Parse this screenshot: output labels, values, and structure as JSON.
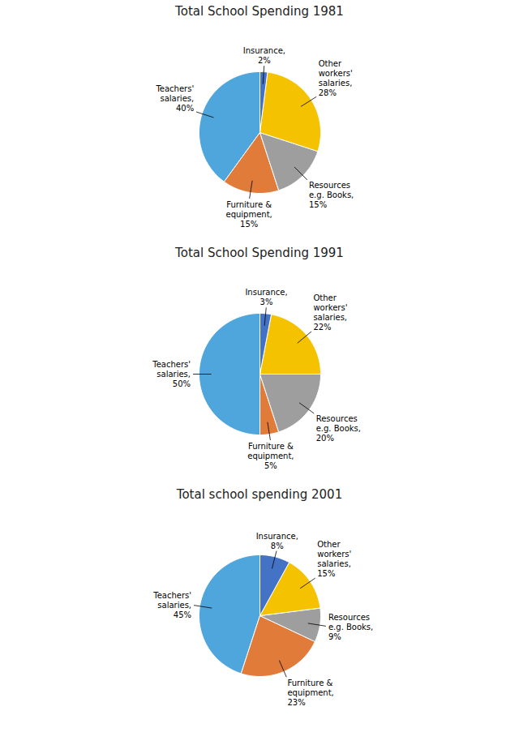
{
  "chart_data": [
    {
      "type": "pie",
      "title": "Total School Spending 1981",
      "categories": [
        "Teachers'\nsalaries,",
        "Furniture &\nequipment,",
        "Resources\ne.g. Books,",
        "Other\nworkers'\nsalaries,",
        "Insurance,"
      ],
      "values": [
        40,
        15,
        15,
        28,
        2
      ],
      "value_labels": [
        "40%",
        "15%",
        "15%",
        "28%",
        "2%"
      ],
      "colors": [
        "#4EA6DC",
        "#E07B39",
        "#9E9E9E",
        "#F5C200",
        "#4472C4"
      ],
      "data_labels": true
    },
    {
      "type": "pie",
      "title": "Total School Spending 1991",
      "categories": [
        "Teachers'\nsalaries,",
        "Furniture &\nequipment,",
        "Resources\ne.g. Books,",
        "Other\nworkers'\nsalaries,",
        "Insurance,"
      ],
      "values": [
        50,
        5,
        20,
        22,
        3
      ],
      "value_labels": [
        "50%",
        "5%",
        "20%",
        "22%",
        "3%"
      ],
      "colors": [
        "#4EA6DC",
        "#E07B39",
        "#9E9E9E",
        "#F5C200",
        "#4472C4"
      ],
      "data_labels": true
    },
    {
      "type": "pie",
      "title": "Total school spending 2001",
      "categories": [
        "Teachers'\nsalaries,",
        "Furniture &\nequipment,",
        "Resources\ne.g. Books,",
        "Other\nworkers'\nsalaries,",
        "Insurance,"
      ],
      "values": [
        45,
        23,
        9,
        15,
        8
      ],
      "value_labels": [
        "45%",
        "23%",
        "9%",
        "15%",
        "8%"
      ],
      "colors": [
        "#4EA6DC",
        "#E07B39",
        "#9E9E9E",
        "#F5C200",
        "#4472C4"
      ],
      "data_labels": true
    }
  ]
}
